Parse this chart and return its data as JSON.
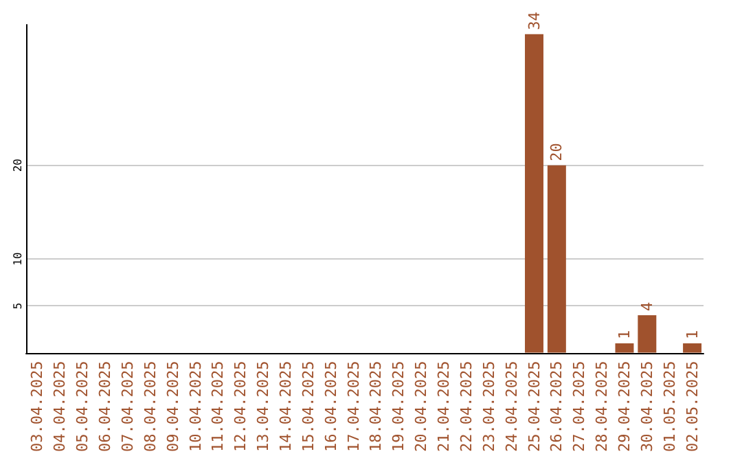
{
  "chart_data": {
    "type": "bar",
    "categories": [
      "03.04.2025",
      "04.04.2025",
      "05.04.2025",
      "06.04.2025",
      "07.04.2025",
      "08.04.2025",
      "09.04.2025",
      "10.04.2025",
      "11.04.2025",
      "12.04.2025",
      "13.04.2025",
      "14.04.2025",
      "15.04.2025",
      "16.04.2025",
      "17.04.2025",
      "18.04.2025",
      "19.04.2025",
      "20.04.2025",
      "21.04.2025",
      "22.04.2025",
      "23.04.2025",
      "24.04.2025",
      "25.04.2025",
      "26.04.2025",
      "27.04.2025",
      "28.04.2025",
      "29.04.2025",
      "30.04.2025",
      "01.05.2025",
      "02.05.2025"
    ],
    "values": [
      0,
      0,
      0,
      0,
      0,
      0,
      0,
      0,
      0,
      0,
      0,
      0,
      0,
      0,
      0,
      0,
      0,
      0,
      0,
      0,
      0,
      0,
      34,
      20,
      0,
      0,
      1,
      4,
      0,
      1
    ],
    "value_labels": [
      null,
      null,
      null,
      null,
      null,
      null,
      null,
      null,
      null,
      null,
      null,
      null,
      null,
      null,
      null,
      null,
      null,
      null,
      null,
      null,
      null,
      null,
      "34",
      "20",
      null,
      null,
      "1",
      "4",
      null,
      "1"
    ],
    "color": "#a0522d",
    "ylim": [
      0,
      35
    ],
    "yticks": [
      5,
      10,
      20
    ],
    "grid": "y"
  }
}
